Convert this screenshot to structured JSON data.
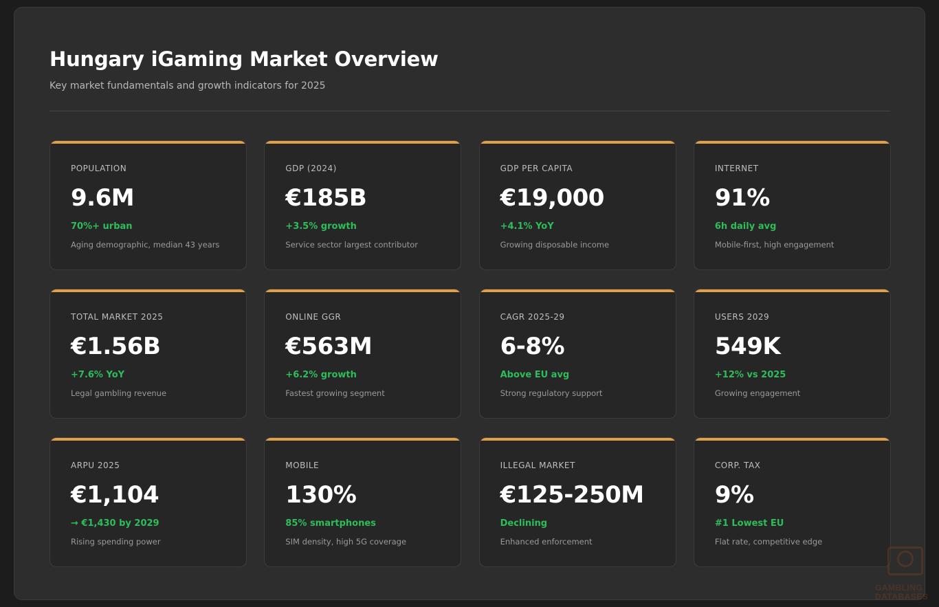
{
  "header": {
    "title": "Hungary iGaming Market Overview",
    "subtitle": "Key market fundamentals and growth indicators for 2025"
  },
  "cards": [
    {
      "label": "POPULATION",
      "value": "9.6M",
      "change": "70%+ urban",
      "note": "Aging demographic, median 43 years"
    },
    {
      "label": "GDP (2024)",
      "value": "€185B",
      "change": "+3.5% growth",
      "note": "Service sector largest contributor"
    },
    {
      "label": "GDP PER CAPITA",
      "value": "€19,000",
      "change": "+4.1% YoY",
      "note": "Growing disposable income"
    },
    {
      "label": "INTERNET",
      "value": "91%",
      "change": "6h daily avg",
      "note": "Mobile-first, high engagement"
    },
    {
      "label": "TOTAL MARKET 2025",
      "value": "€1.56B",
      "change": "+7.6% YoY",
      "note": "Legal gambling revenue"
    },
    {
      "label": "ONLINE GGR",
      "value": "€563M",
      "change": "+6.2% growth",
      "note": "Fastest growing segment"
    },
    {
      "label": "CAGR 2025-29",
      "value": "6-8%",
      "change": "Above EU avg",
      "note": "Strong regulatory support"
    },
    {
      "label": "USERS 2029",
      "value": "549K",
      "change": "+12% vs 2025",
      "note": "Growing engagement"
    },
    {
      "label": "ARPU 2025",
      "value": "€1,104",
      "change": "→ €1,430 by 2029",
      "note": "Rising spending power"
    },
    {
      "label": "MOBILE",
      "value": "130%",
      "change": "85% smartphones",
      "note": "SIM density, high 5G coverage"
    },
    {
      "label": "ILLEGAL MARKET",
      "value": "€125-250M",
      "change": "Declining",
      "note": "Enhanced enforcement"
    },
    {
      "label": "CORP. TAX",
      "value": "9%",
      "change": "#1 Lowest EU",
      "note": "Flat rate, competitive edge"
    }
  ],
  "watermark": {
    "line1": "GAMBLING",
    "line2": "DATABASES"
  },
  "colors": {
    "accent": "#e0a048",
    "positive": "#2ebd5a",
    "background": "#2d2d2d",
    "card": "#262626"
  }
}
